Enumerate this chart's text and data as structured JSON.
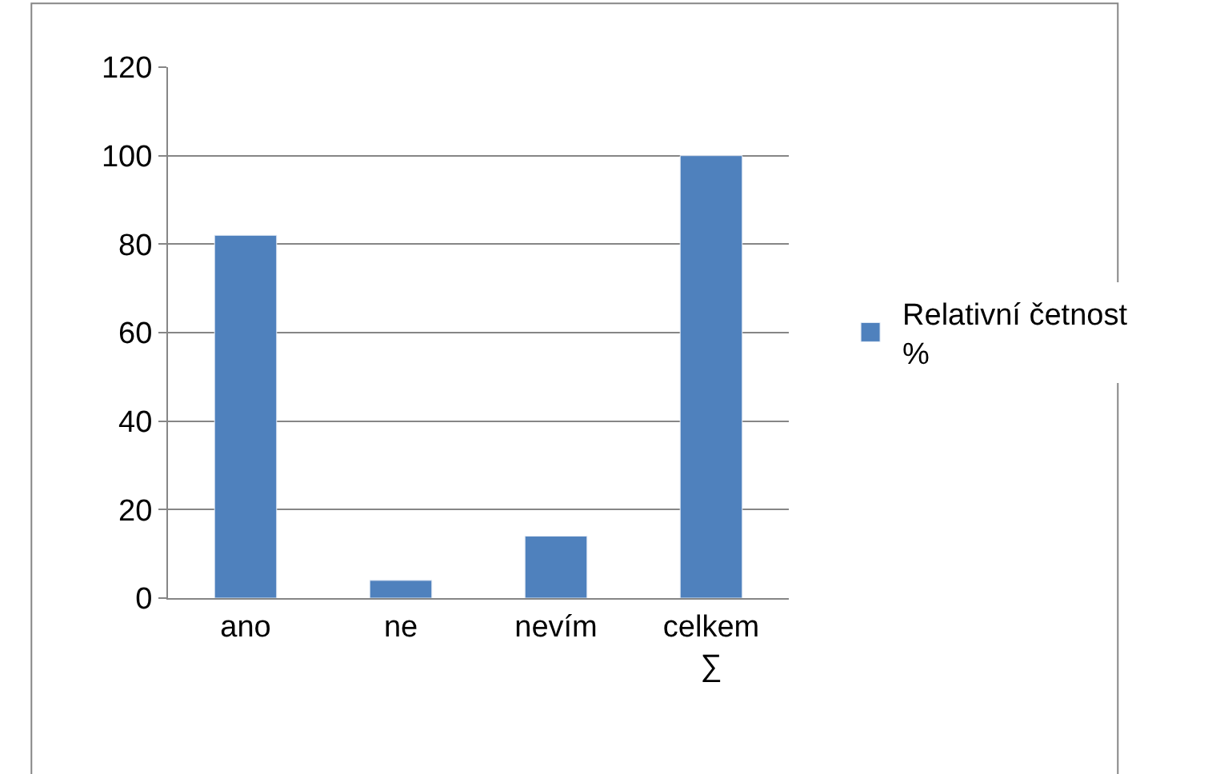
{
  "chart_data": {
    "type": "bar",
    "categories": [
      "ano",
      "ne",
      "nevím",
      "celkem\n∑"
    ],
    "series": [
      {
        "name": "Relativní četnost\n%",
        "color": "#4f81bd",
        "values": [
          82,
          4,
          14,
          100
        ]
      }
    ],
    "ylim": [
      0,
      120
    ],
    "yticks": [
      0,
      20,
      40,
      60,
      80,
      100,
      120
    ],
    "grid": "y",
    "legend": "right"
  }
}
